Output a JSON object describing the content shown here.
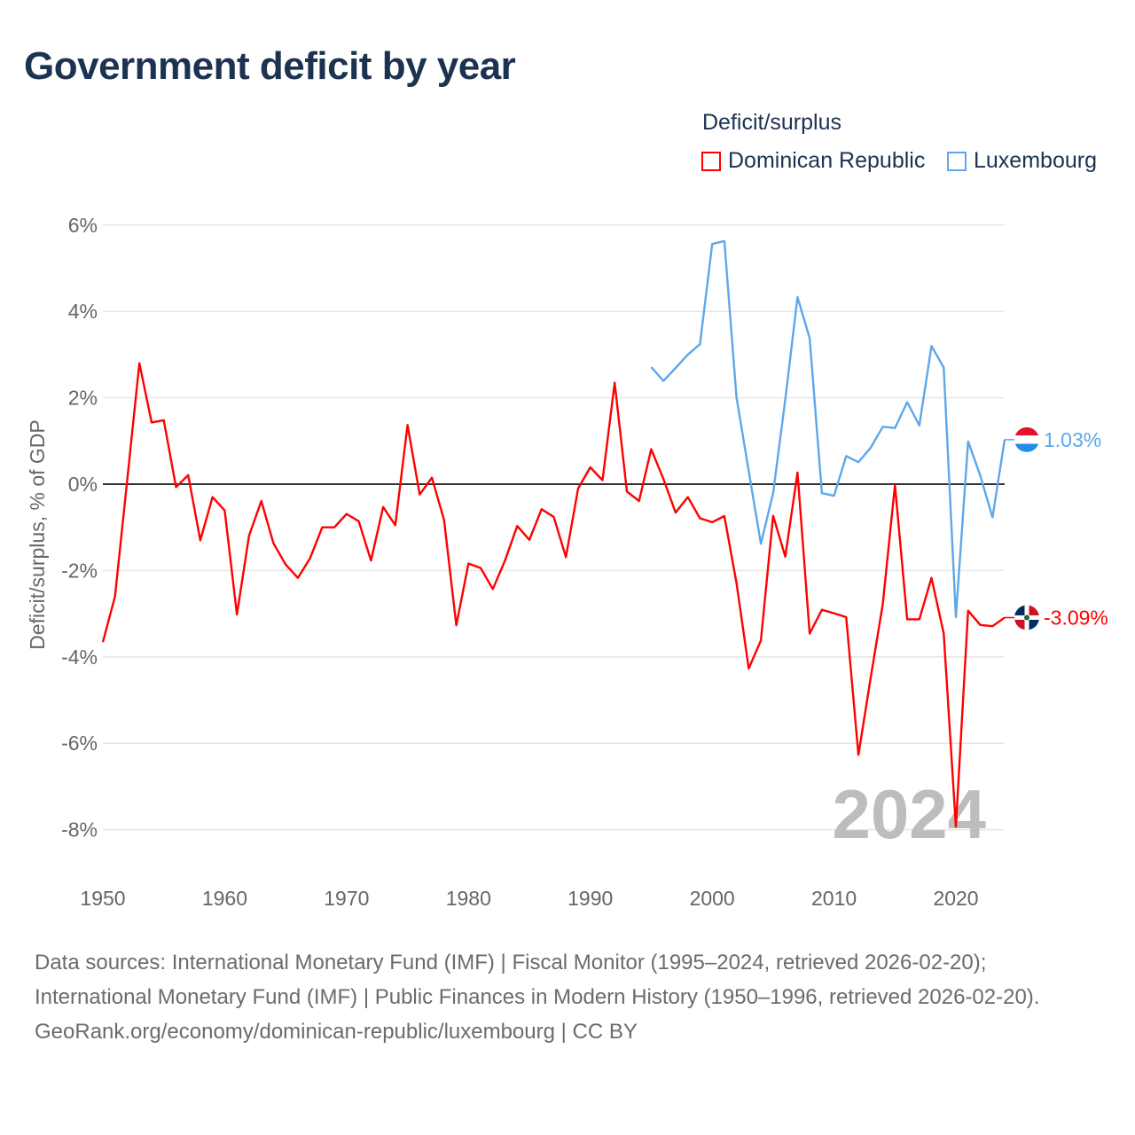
{
  "title": "Government deficit by year",
  "legend": {
    "title": "Deficit/surplus",
    "items": [
      {
        "label": "Dominican Republic",
        "color": "#ff0000"
      },
      {
        "label": "Luxembourg",
        "color": "#5da7ea"
      }
    ]
  },
  "chart_data": {
    "type": "line",
    "title": "Government deficit by year",
    "xlabel": "",
    "ylabel": "Deficit/surplus, % of GDP",
    "xlim": [
      1950,
      2024
    ],
    "ylim": [
      -8,
      6
    ],
    "x_ticks": [
      "1950",
      "1960",
      "1970",
      "1980",
      "1990",
      "2000",
      "2010",
      "2020"
    ],
    "y_ticks": [
      {
        "value": 6,
        "label": "6%"
      },
      {
        "value": 4,
        "label": "4%"
      },
      {
        "value": 2,
        "label": "2%"
      },
      {
        "value": 0,
        "label": "0%"
      },
      {
        "value": -2,
        "label": "-2%"
      },
      {
        "value": -4,
        "label": "-4%"
      },
      {
        "value": -6,
        "label": "-6%"
      },
      {
        "value": -8,
        "label": "-8%"
      }
    ],
    "grid": true,
    "legend_position": "top-right",
    "year_watermark": "2024",
    "series": [
      {
        "name": "Dominican Republic",
        "color": "#ff0000",
        "start_year": 1950,
        "end_label": "-3.09%",
        "flag": "dominican-republic",
        "values": [
          -3.66,
          -2.6,
          0.1,
          2.8,
          1.43,
          1.48,
          -0.07,
          0.21,
          -1.3,
          -0.3,
          -0.61,
          -3.02,
          -1.19,
          -0.39,
          -1.37,
          -1.86,
          -2.17,
          -1.72,
          -1.0,
          -1.0,
          -0.69,
          -0.86,
          -1.77,
          -0.53,
          -0.95,
          1.37,
          -0.24,
          0.15,
          -0.83,
          -3.27,
          -1.84,
          -1.94,
          -2.43,
          -1.77,
          -0.97,
          -1.29,
          -0.58,
          -0.76,
          -1.69,
          -0.1,
          0.39,
          0.09,
          2.35,
          -0.17,
          -0.39,
          0.81,
          0.12,
          -0.66,
          -0.3,
          -0.79,
          -0.88,
          -0.74,
          -2.29,
          -4.27,
          -3.62,
          -0.73,
          -1.68,
          0.27,
          -3.46,
          -2.91,
          -2.99,
          -3.08,
          -6.27,
          -4.5,
          -2.77,
          -0.02,
          -3.13,
          -3.13,
          -2.17,
          -3.46,
          -7.93,
          -2.93,
          -3.26,
          -3.29,
          -3.09
        ]
      },
      {
        "name": "Luxembourg",
        "color": "#5da7ea",
        "start_year": 1995,
        "end_label": "1.03%",
        "flag": "luxembourg",
        "values": [
          2.71,
          2.39,
          2.69,
          3.0,
          3.24,
          5.56,
          5.63,
          2.01,
          0.3,
          -1.38,
          -0.21,
          1.96,
          4.33,
          3.38,
          -0.21,
          -0.27,
          0.65,
          0.51,
          0.84,
          1.33,
          1.3,
          1.9,
          1.36,
          3.2,
          2.7,
          -3.08,
          0.99,
          0.2,
          -0.77,
          1.03
        ]
      }
    ]
  },
  "footer": {
    "sources": "Data sources: International Monetary Fund (IMF) | Fiscal Monitor (1995–2024, retrieved 2026-02-20); International Monetary Fund (IMF) | Public Finances in Modern History (1950–1996, retrieved 2026-02-20).",
    "link": "GeoRank.org/economy/dominican-republic/luxembourg | CC BY"
  }
}
